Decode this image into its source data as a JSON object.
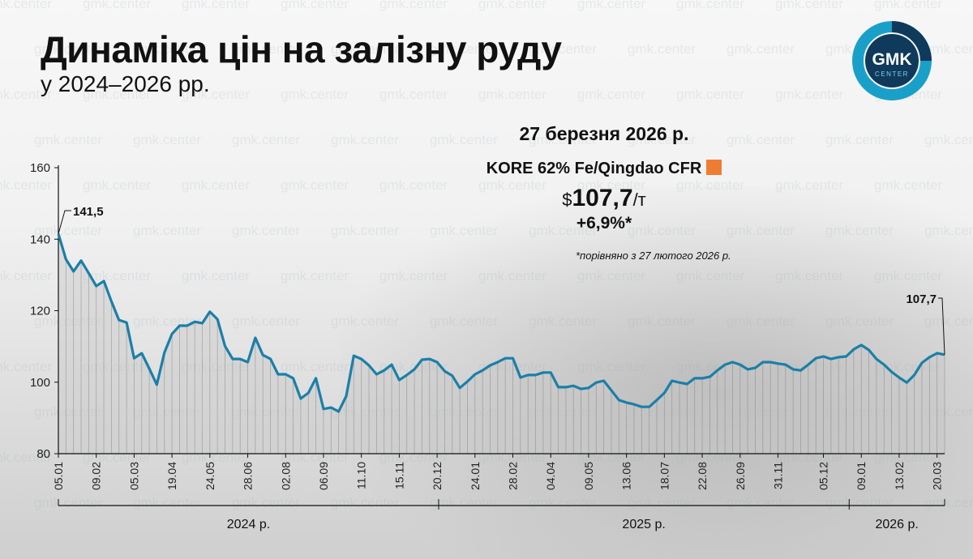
{
  "header": {
    "title": "Динаміка цін на залізну руду",
    "subtitle": "у 2024–2026 рр."
  },
  "logo": {
    "text_main": "GMK",
    "text_sub": "CENTER",
    "colors": {
      "ring": "#1aa0c8",
      "dark": "#0f3a5c"
    }
  },
  "watermark": "gmk.center",
  "info": {
    "date": "27 березня 2026 р.",
    "index_name": "KORE 62% Fe/Qingdao CFR",
    "currency": "$",
    "price": "107,7",
    "unit": "/т",
    "change": "+6,9%*",
    "footnote": "*порівняно з 27 лютого 2026 р.",
    "marker_color": "#ee7d32"
  },
  "chart_data": {
    "type": "line",
    "title": "Динаміка цін на залізну руду",
    "xlabel": "",
    "ylabel": "",
    "ylim": [
      80,
      160
    ],
    "yticks": [
      80,
      100,
      120,
      140,
      160
    ],
    "x_unit": "week index from 05.01.2024",
    "xlim": [
      0,
      117
    ],
    "xticks": [
      {
        "x": 0,
        "label": "05.01"
      },
      {
        "x": 5,
        "label": "09.02"
      },
      {
        "x": 10,
        "label": "05.03"
      },
      {
        "x": 15,
        "label": "19.04"
      },
      {
        "x": 20,
        "label": "24.05"
      },
      {
        "x": 25,
        "label": "28.06"
      },
      {
        "x": 30,
        "label": "02.08"
      },
      {
        "x": 35,
        "label": "06.09"
      },
      {
        "x": 40,
        "label": "11.10"
      },
      {
        "x": 45,
        "label": "15.11"
      },
      {
        "x": 50,
        "label": "20.12"
      },
      {
        "x": 55,
        "label": "24.01"
      },
      {
        "x": 60,
        "label": "28.02"
      },
      {
        "x": 65,
        "label": "04.04"
      },
      {
        "x": 70,
        "label": "09.05"
      },
      {
        "x": 75,
        "label": "13.06"
      },
      {
        "x": 80,
        "label": "18.07"
      },
      {
        "x": 85,
        "label": "22.08"
      },
      {
        "x": 90,
        "label": "26.09"
      },
      {
        "x": 95,
        "label": "31.11"
      },
      {
        "x": 101,
        "label": "05.12"
      },
      {
        "x": 106,
        "label": "09.01"
      },
      {
        "x": 111,
        "label": "13.02"
      },
      {
        "x": 116,
        "label": "20.03"
      }
    ],
    "years": [
      {
        "label": "2024 р.",
        "from": 0,
        "to": 50.2
      },
      {
        "label": "2025 р.",
        "from": 50.2,
        "to": 104.4
      },
      {
        "label": "2026 р.",
        "from": 104.4,
        "to": 117
      }
    ],
    "series": [
      {
        "name": "KORE 62% Fe/Qingdao CFR",
        "color": "#1b7fa8",
        "values": [
          141.5,
          134.4,
          131.0,
          134.0,
          130.5,
          126.9,
          128.3,
          122.6,
          117.4,
          116.7,
          106.7,
          108.1,
          103.8,
          99.3,
          108.3,
          113.5,
          115.8,
          115.8,
          116.9,
          116.5,
          119.7,
          117.6,
          110.1,
          106.5,
          106.5,
          105.6,
          112.4,
          107.6,
          106.5,
          102.2,
          102.2,
          101.1,
          95.4,
          97.0,
          101.1,
          92.5,
          92.9,
          91.8,
          96.1,
          107.4,
          106.5,
          104.7,
          102.2,
          103.3,
          104.9,
          100.6,
          102.0,
          103.6,
          106.3,
          106.5,
          105.6,
          103.1,
          101.8,
          98.4,
          100.2,
          102.2,
          103.3,
          104.7,
          105.6,
          106.7,
          106.7,
          101.3,
          102.0,
          102.0,
          102.7,
          102.7,
          98.6,
          98.6,
          99.0,
          98.1,
          98.4,
          99.9,
          100.4,
          97.7,
          95.0,
          94.3,
          93.8,
          93.1,
          93.1,
          95.0,
          97.0,
          100.4,
          99.9,
          99.5,
          101.1,
          101.1,
          101.5,
          103.3,
          104.9,
          105.6,
          104.9,
          103.6,
          104.0,
          105.6,
          105.6,
          105.2,
          104.9,
          103.6,
          103.3,
          104.9,
          106.7,
          107.2,
          106.5,
          107.0,
          107.2,
          109.2,
          110.4,
          109.0,
          106.5,
          104.9,
          102.9,
          101.3,
          99.9,
          102.0,
          105.4,
          107.0,
          108.1,
          107.7
        ]
      }
    ],
    "annotations": [
      {
        "x": 0,
        "label": "141,5"
      },
      {
        "x": 117,
        "label": "107,7"
      }
    ],
    "grid": false,
    "legend": "none"
  }
}
